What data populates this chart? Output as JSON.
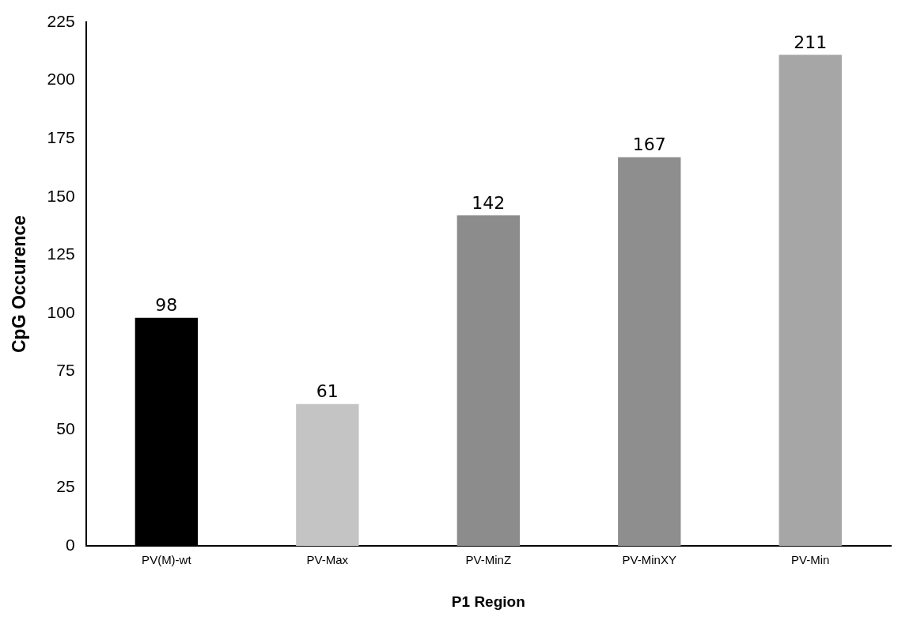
{
  "chart_data": {
    "type": "bar",
    "xlabel": "P1 Region",
    "ylabel": "CpG Occurence",
    "categories": [
      "PV(M)-wt",
      "PV-Max",
      "PV-MinZ",
      "PV-MinXY",
      "PV-Min"
    ],
    "values": [
      98,
      61,
      142,
      167,
      211
    ],
    "colors": [
      "#000000",
      "#c4c4c4",
      "#8c8c8c",
      "#8e8e8e",
      "#a6a6a6"
    ],
    "ylim": [
      0,
      225
    ],
    "yticks": [
      0,
      25,
      50,
      75,
      100,
      125,
      150,
      175,
      200,
      225
    ],
    "grid": false,
    "legend": false,
    "data_labels": true
  }
}
